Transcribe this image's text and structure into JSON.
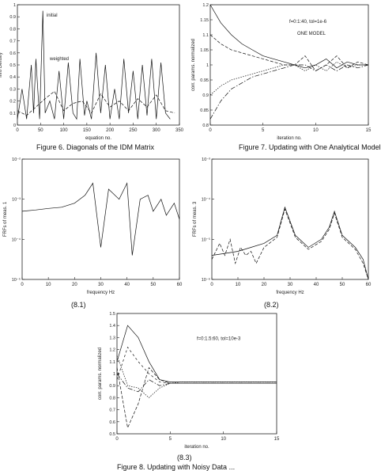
{
  "captions": {
    "fig6": "Figure 6.   Diagonals of the IDM Matrix",
    "fig7": "Figure 7.   Updating with One Analytical Model",
    "sub81": "(8.1)",
    "sub82": "(8.2)",
    "sub83": "(8.3)",
    "fig8_partial": "Figure 8.   Updating with Noisy Data ..."
  },
  "chart_data": [
    {
      "id": "fig6",
      "type": "line",
      "title": "",
      "xlabel": "equation no.",
      "ylabel": "Info Density",
      "xlim": [
        0,
        350
      ],
      "ylim": [
        0,
        1
      ],
      "xticks": [
        "0",
        "50",
        "100",
        "150",
        "200",
        "250",
        "300",
        "350"
      ],
      "yticks": [
        "0",
        "0.1",
        "0.2",
        "0.3",
        "0.4",
        "0.5",
        "0.6",
        "0.7",
        "0.8",
        "0.9",
        "1"
      ],
      "annotations": [
        "initial",
        "weighted"
      ],
      "series": [
        {
          "x": [
            0,
            10,
            20,
            30,
            35,
            40,
            48,
            55,
            60,
            70,
            80,
            90,
            100,
            110,
            120,
            128,
            135,
            145,
            150,
            160,
            170,
            180,
            190,
            200,
            210,
            220,
            230,
            240,
            250,
            260,
            270,
            280,
            290,
            300,
            310,
            320,
            330
          ],
          "y": [
            0.05,
            0.3,
            0.05,
            0.5,
            0.1,
            0.55,
            0.05,
            0.95,
            0.1,
            0.2,
            0.05,
            0.45,
            0.05,
            0.52,
            0.1,
            0.05,
            0.55,
            0.08,
            0.2,
            0.05,
            0.6,
            0.1,
            0.5,
            0.05,
            0.3,
            0.05,
            0.55,
            0.1,
            0.45,
            0.05,
            0.5,
            0.08,
            0.55,
            0.05,
            0.52,
            0.1,
            0.05
          ]
        },
        {
          "x": [
            0,
            20,
            40,
            60,
            80,
            100,
            120,
            140,
            160,
            180,
            200,
            220,
            240,
            260,
            280,
            300,
            320,
            340
          ],
          "y": [
            0.12,
            0.08,
            0.15,
            0.22,
            0.28,
            0.12,
            0.18,
            0.2,
            0.1,
            0.26,
            0.15,
            0.2,
            0.12,
            0.22,
            0.15,
            0.25,
            0.12,
            0.1
          ]
        }
      ]
    },
    {
      "id": "fig7",
      "type": "line",
      "title": "",
      "xlabel": "iteration no.",
      "ylabel": "corr. params. normalized",
      "xlim": [
        0,
        15
      ],
      "ylim": [
        0.8,
        1.2
      ],
      "xticks": [
        "0",
        "5",
        "10",
        "15"
      ],
      "yticks": [
        "0.8",
        "0.85",
        "0.9",
        "0.95",
        "1",
        "1.05",
        "1.1",
        "1.15",
        "1.2"
      ],
      "annotations": [
        "f=0:1:40, tol=1e-6",
        "ONE MODEL"
      ],
      "series": [
        {
          "x": [
            0,
            1,
            2,
            3,
            4,
            5,
            6,
            7,
            8,
            9,
            10,
            11,
            12,
            13,
            14,
            15
          ],
          "y": [
            1.2,
            1.14,
            1.1,
            1.07,
            1.05,
            1.03,
            1.02,
            1.01,
            1.0,
            0.99,
            1.0,
            1.02,
            0.99,
            1.01,
            1.0,
            1.0
          ]
        },
        {
          "x": [
            0,
            1,
            2,
            3,
            4,
            5,
            6,
            7,
            8,
            9,
            10,
            11,
            12,
            13,
            14,
            15
          ],
          "y": [
            1.1,
            1.07,
            1.05,
            1.04,
            1.03,
            1.02,
            1.01,
            1.0,
            1.0,
            1.03,
            0.98,
            1.0,
            1.03,
            0.99,
            1.01,
            1.0
          ]
        },
        {
          "x": [
            0,
            1,
            2,
            3,
            4,
            5,
            6,
            7,
            8,
            9,
            10,
            11,
            12,
            13,
            14,
            15
          ],
          "y": [
            0.9,
            0.93,
            0.95,
            0.96,
            0.97,
            0.98,
            0.99,
            1.0,
            1.0,
            0.98,
            1.0,
            0.98,
            1.01,
            0.99,
            1.0,
            1.0
          ]
        },
        {
          "x": [
            0,
            1,
            2,
            3,
            4,
            5,
            6,
            7,
            8,
            9,
            10,
            11,
            12,
            13,
            14,
            15
          ],
          "y": [
            0.82,
            0.88,
            0.92,
            0.94,
            0.96,
            0.97,
            0.98,
            0.99,
            1.0,
            1.0,
            0.98,
            1.0,
            0.98,
            1.0,
            0.99,
            1.0
          ]
        }
      ]
    },
    {
      "id": "fig8_1",
      "type": "line",
      "title": "",
      "xlabel": "frequency Hz",
      "ylabel": "FRFs of meas. 1",
      "xlim": [
        0,
        60
      ],
      "ylog": true,
      "ylim_exp": [
        -5,
        -2
      ],
      "xticks": [
        "0",
        "10",
        "20",
        "30",
        "40",
        "50",
        "60"
      ],
      "yticks": [
        "10⁻²",
        "10⁻³",
        "10⁻⁴",
        "10⁻⁵"
      ],
      "series": [
        {
          "x": [
            0,
            5,
            10,
            15,
            20,
            24,
            27,
            30,
            33,
            37,
            40,
            42,
            45,
            48,
            50,
            53,
            55,
            58,
            60
          ],
          "y": [
            -3.3,
            -3.27,
            -3.23,
            -3.2,
            -3.1,
            -2.9,
            -2.6,
            -4.2,
            -2.75,
            -3.0,
            -2.6,
            -4.4,
            -3.0,
            -2.9,
            -3.3,
            -3.0,
            -3.4,
            -3.1,
            -3.5
          ]
        }
      ]
    },
    {
      "id": "fig8_2",
      "type": "line",
      "title": "",
      "xlabel": "frequency Hz",
      "ylabel": "FRFs of meas. 3",
      "xlim": [
        0,
        60
      ],
      "ylog": true,
      "ylim_exp": [
        -6,
        -3
      ],
      "xticks": [
        "0",
        "10",
        "20",
        "30",
        "40",
        "50",
        "60"
      ],
      "yticks": [
        "10⁻³",
        "10⁻⁴",
        "10⁻⁵",
        "10⁻⁶"
      ],
      "series": [
        {
          "x": [
            0,
            5,
            10,
            15,
            20,
            25,
            28,
            32,
            37,
            42,
            45,
            47,
            50,
            55,
            58,
            60
          ],
          "y": [
            -5.4,
            -5.35,
            -5.3,
            -5.2,
            -5.1,
            -4.9,
            -4.2,
            -4.9,
            -5.2,
            -5.0,
            -4.7,
            -4.3,
            -4.9,
            -5.2,
            -5.5,
            -6.0
          ]
        },
        {
          "x": [
            0,
            3,
            5,
            7,
            9,
            11,
            13,
            15,
            17,
            20,
            25,
            28,
            32,
            37,
            42,
            45,
            47,
            50,
            55,
            58,
            60
          ],
          "y": [
            -5.5,
            -5.1,
            -5.4,
            -5.0,
            -5.6,
            -5.2,
            -5.4,
            -5.3,
            -5.6,
            -5.2,
            -4.95,
            -4.25,
            -4.95,
            -5.25,
            -5.05,
            -4.75,
            -4.35,
            -4.95,
            -5.25,
            -5.6,
            -6.0
          ]
        }
      ]
    },
    {
      "id": "fig8_3",
      "type": "line",
      "title": "",
      "xlabel": "iteration no.",
      "ylabel": "corr. params. normalized",
      "xlim": [
        0,
        15
      ],
      "ylim": [
        0.5,
        1.5
      ],
      "xticks": [
        "0",
        "5",
        "10",
        "15"
      ],
      "yticks": [
        "0.5",
        "0.6",
        "0.7",
        "0.8",
        "0.9",
        "1",
        "1.1",
        "1.2",
        "1.3",
        "1.4",
        "1.5"
      ],
      "annotations": [
        "f=0:1.5:60, tol=10e-3"
      ],
      "series": [
        {
          "x": [
            0,
            1,
            2,
            3,
            4,
            5,
            6,
            7,
            8,
            9,
            10,
            11,
            12,
            13,
            14,
            15
          ],
          "y": [
            1.1,
            1.4,
            1.3,
            1.1,
            0.95,
            0.93,
            0.93,
            0.93,
            0.93,
            0.93,
            0.93,
            0.93,
            0.93,
            0.93,
            0.93,
            0.93
          ]
        },
        {
          "x": [
            0,
            1,
            2,
            3,
            4,
            5,
            6,
            7,
            8,
            9,
            10,
            11,
            12,
            13,
            14,
            15
          ],
          "y": [
            1.05,
            0.55,
            0.75,
            1.05,
            0.95,
            0.92,
            0.92,
            0.92,
            0.92,
            0.92,
            0.92,
            0.92,
            0.92,
            0.92,
            0.92,
            0.92
          ]
        },
        {
          "x": [
            0,
            1,
            2,
            3,
            4,
            5,
            6,
            7,
            8,
            9,
            10,
            11,
            12,
            13,
            14,
            15
          ],
          "y": [
            1.15,
            0.9,
            0.88,
            0.8,
            0.88,
            0.92,
            0.93,
            0.93,
            0.93,
            0.93,
            0.93,
            0.93,
            0.93,
            0.93,
            0.93,
            0.93
          ]
        },
        {
          "x": [
            0,
            1,
            2,
            3,
            4,
            5,
            6,
            7,
            8,
            9,
            10,
            11,
            12,
            13,
            14,
            15
          ],
          "y": [
            1.0,
            0.88,
            0.85,
            0.95,
            0.9,
            0.92,
            0.92,
            0.92,
            0.92,
            0.92,
            0.92,
            0.92,
            0.92,
            0.92,
            0.92,
            0.92
          ]
        },
        {
          "x": [
            0,
            1,
            2,
            3,
            4,
            5,
            6,
            7,
            8,
            9,
            10,
            11,
            12,
            13,
            14,
            15
          ],
          "y": [
            0.95,
            1.22,
            1.1,
            1.0,
            0.93,
            0.92,
            0.92,
            0.92,
            0.92,
            0.92,
            0.92,
            0.92,
            0.92,
            0.92,
            0.92,
            0.92
          ]
        }
      ]
    }
  ]
}
